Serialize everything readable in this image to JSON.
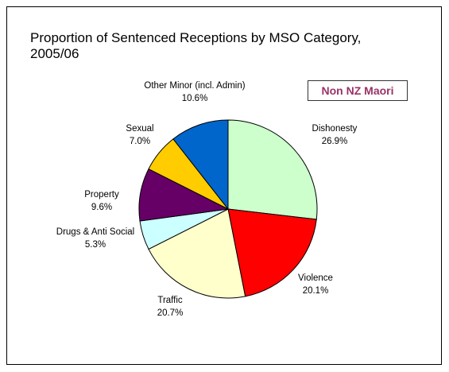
{
  "chart_data": {
    "type": "pie",
    "title": "Proportion of Sentenced Receptions by MSO Category, 2005/06",
    "annotation": "Non NZ Maori",
    "categories": [
      "Dishonesty",
      "Violence",
      "Traffic",
      "Drugs & Anti Social",
      "Property",
      "Sexual",
      "Other Minor (incl. Admin)"
    ],
    "values": [
      26.9,
      20.1,
      20.7,
      5.3,
      9.6,
      7.0,
      10.6
    ],
    "value_labels": [
      "26.9%",
      "20.1%",
      "20.7%",
      "5.3%",
      "9.6%",
      "7.0%",
      "10.6%"
    ],
    "colors": [
      "#ccffcc",
      "#ff0000",
      "#ffffcc",
      "#ccffff",
      "#660066",
      "#ffcc00",
      "#0066cc"
    ]
  }
}
